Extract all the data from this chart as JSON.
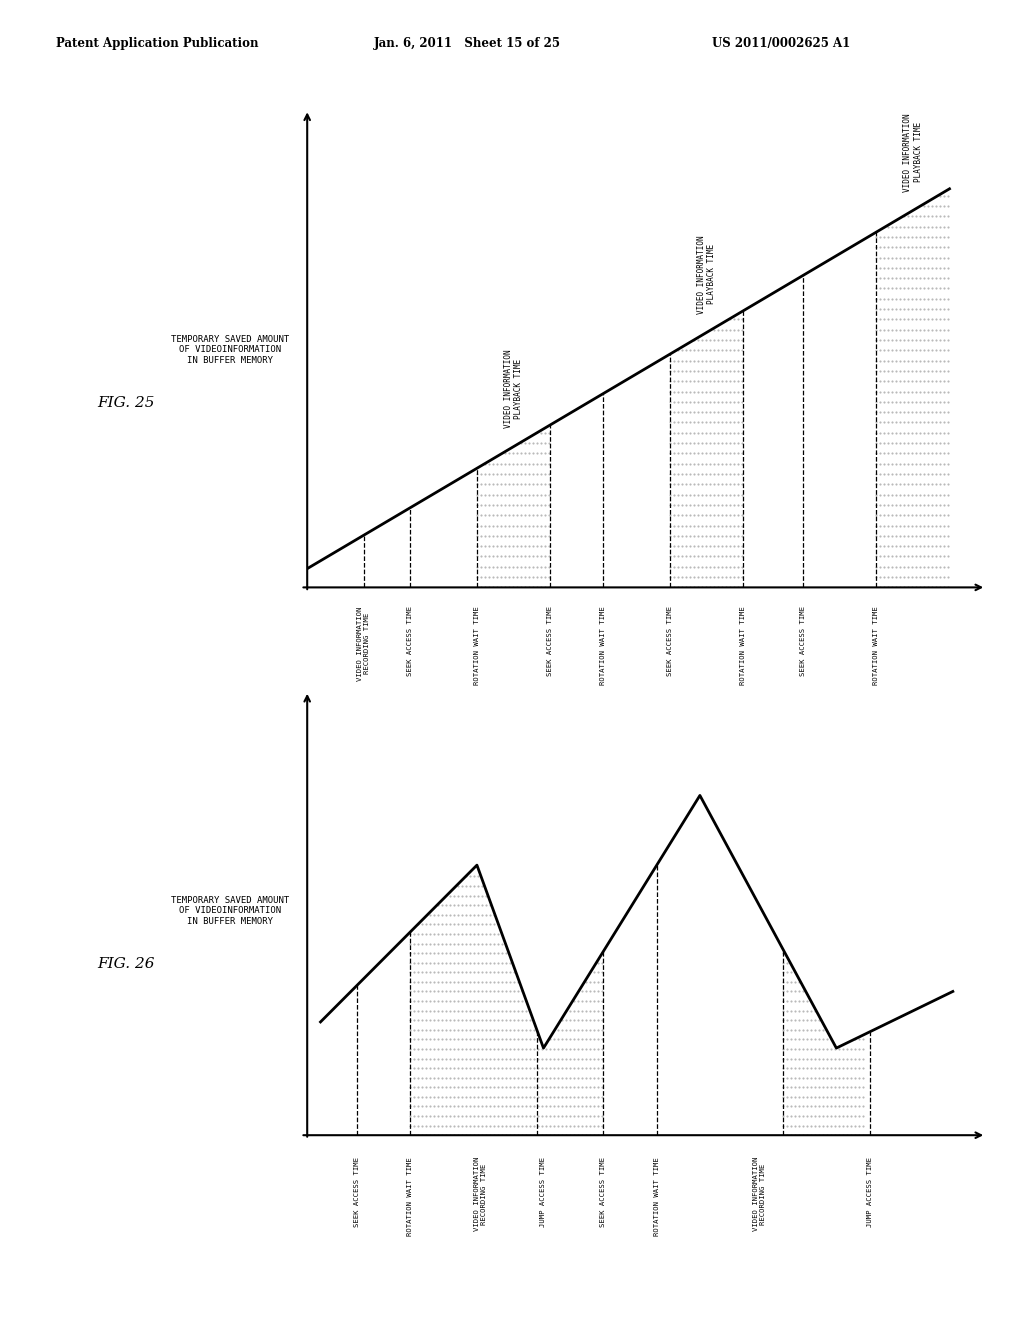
{
  "header_left": "Patent Application Publication",
  "header_mid": "Jan. 6, 2011   Sheet 15 of 25",
  "header_right": "US 2011/0002625 A1",
  "fig25_label": "FIG. 25",
  "fig25_ylabel": "TEMPORARY SAVED AMOUNT\nOF VIDEOINFORMATION\nIN BUFFER MEMORY",
  "fig25_xlabels": [
    "VIDEO INFORMATION\nRECORDING TIME",
    "SEEK ACCESS TIME",
    "ROTATION WAIT TIME",
    "SEEK ACCESS TIME",
    "ROTATION WAIT TIME",
    "SEEK ACCESS TIME",
    "ROTATION WAIT TIME",
    "SEEK ACCESS TIME",
    "ROTATION WAIT TIME"
  ],
  "fig25_playback_labels": [
    "VIDEO INFORMATION\nPLAYBACK TIME",
    "VIDEO INFORMATION\nPLAYBACK TIME",
    "VIDEO INFORMATION\nPLAYBACK TIME"
  ],
  "fig26_label": "FIG. 26",
  "fig26_ylabel": "TEMPORARY SAVED AMOUNT\nOF VIDEOINFORMATION\nIN BUFFER MEMORY",
  "fig26_xlabels": [
    "SEEK ACCESS TIME",
    "ROTATION WAIT TIME",
    "VIDEO INFORMATION\nRECORDING TIME",
    "JUMP ACCESS TIME",
    "SEEK ACCESS TIME",
    "ROTATION WAIT TIME",
    "VIDEO INFORMATION\nRECORDING TIME",
    "JUMP ACCESS TIME"
  ],
  "bg": "#ffffff",
  "lc": "#000000"
}
